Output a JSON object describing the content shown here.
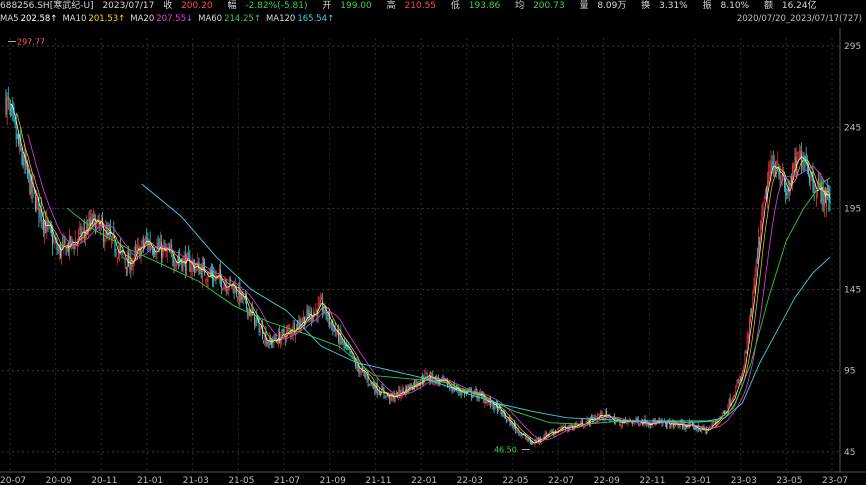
{
  "header": {
    "symbol": "688256.SH[寒武纪-U]",
    "date": "2023/07/17",
    "close_label": "收",
    "close": "200.20",
    "change_label": "幅",
    "change": "-2.82%(-5.81)",
    "open_label": "开",
    "open": "199.00",
    "high_label": "高",
    "high": "210.55",
    "low_label": "低",
    "low": "193.86",
    "avg_label": "均",
    "avg": "200.73",
    "volume_label": "量",
    "volume": "8.09万",
    "turnover_label": "换",
    "turnover": "3.31%",
    "amplitude_label": "振",
    "amplitude": "8.10%",
    "amount_label": "额",
    "amount": "16.24亿"
  },
  "ma_legend": [
    {
      "label": "MA5",
      "value": "202.58↑",
      "color": "#ffffff"
    },
    {
      "label": "MA10",
      "value": "201.53↑",
      "color": "#ffd400"
    },
    {
      "label": "MA20",
      "value": "207.55↓",
      "color": "#e040e0"
    },
    {
      "label": "MA60",
      "value": "214.25↑",
      "color": "#2ecc40"
    },
    {
      "label": "MA120",
      "value": "165.54↑",
      "color": "#3fd0e8"
    }
  ],
  "date_range": "2020/07/20_2023/07/17(727)",
  "chart_data": {
    "type": "candlestick",
    "y_ticks": [
      295,
      245,
      195,
      145,
      95,
      45
    ],
    "ylim": [
      40,
      300
    ],
    "x_ticks": [
      "20-07",
      "20-09",
      "20-11",
      "21-01",
      "21-03",
      "21-05",
      "21-07",
      "21-09",
      "21-11",
      "22-01",
      "22-03",
      "22-05",
      "22-07",
      "22-09",
      "22-11",
      "23-01",
      "23-03",
      "23-05",
      "23-07"
    ],
    "annotations": [
      {
        "text": "297.77",
        "value": 297.77,
        "type": "high"
      },
      {
        "text": "46.50",
        "value": 46.5,
        "type": "low"
      }
    ],
    "price_path": [
      [
        0,
        262
      ],
      [
        3,
        232
      ],
      [
        6,
        205
      ],
      [
        9,
        185
      ],
      [
        12,
        168
      ],
      [
        16,
        175
      ],
      [
        20,
        187
      ],
      [
        24,
        175
      ],
      [
        28,
        160
      ],
      [
        32,
        175
      ],
      [
        36,
        168
      ],
      [
        40,
        163
      ],
      [
        44,
        158
      ],
      [
        48,
        152
      ],
      [
        52,
        147
      ],
      [
        56,
        130
      ],
      [
        60,
        112
      ],
      [
        64,
        118
      ],
      [
        68,
        127
      ],
      [
        72,
        135
      ],
      [
        76,
        115
      ],
      [
        80,
        98
      ],
      [
        84,
        85
      ],
      [
        88,
        78
      ],
      [
        92,
        85
      ],
      [
        96,
        92
      ],
      [
        100,
        87
      ],
      [
        104,
        82
      ],
      [
        108,
        80
      ],
      [
        112,
        72
      ],
      [
        116,
        60
      ],
      [
        120,
        50
      ],
      [
        124,
        57
      ],
      [
        128,
        60
      ],
      [
        132,
        63
      ],
      [
        136,
        68
      ],
      [
        140,
        63
      ],
      [
        144,
        64
      ],
      [
        148,
        63
      ],
      [
        152,
        62
      ],
      [
        156,
        61
      ],
      [
        160,
        58
      ],
      [
        164,
        70
      ],
      [
        168,
        92
      ],
      [
        170,
        130
      ],
      [
        172,
        180
      ],
      [
        174,
        215
      ],
      [
        176,
        225
      ],
      [
        178,
        203
      ],
      [
        180,
        220
      ],
      [
        182,
        230
      ],
      [
        184,
        212
      ],
      [
        186,
        205
      ],
      [
        188,
        201
      ]
    ],
    "ma120_path": [
      [
        31,
        210
      ],
      [
        40,
        190
      ],
      [
        48,
        165
      ],
      [
        56,
        145
      ],
      [
        64,
        132
      ],
      [
        72,
        110
      ],
      [
        80,
        100
      ],
      [
        88,
        95
      ],
      [
        96,
        90
      ],
      [
        104,
        82
      ],
      [
        112,
        75
      ],
      [
        120,
        70
      ],
      [
        128,
        66
      ],
      [
        136,
        65
      ],
      [
        144,
        64
      ],
      [
        152,
        64
      ],
      [
        160,
        64
      ],
      [
        164,
        66
      ],
      [
        168,
        75
      ],
      [
        172,
        100
      ],
      [
        176,
        120
      ],
      [
        180,
        140
      ],
      [
        184,
        155
      ],
      [
        188,
        165
      ]
    ],
    "ma60_path": [
      [
        14,
        195
      ],
      [
        20,
        182
      ],
      [
        28,
        170
      ],
      [
        36,
        160
      ],
      [
        44,
        150
      ],
      [
        52,
        135
      ],
      [
        60,
        125
      ],
      [
        68,
        118
      ],
      [
        76,
        110
      ],
      [
        84,
        92
      ],
      [
        92,
        90
      ],
      [
        100,
        88
      ],
      [
        108,
        80
      ],
      [
        116,
        70
      ],
      [
        124,
        63
      ],
      [
        132,
        62
      ],
      [
        140,
        64
      ],
      [
        148,
        64
      ],
      [
        156,
        63
      ],
      [
        162,
        64
      ],
      [
        166,
        72
      ],
      [
        170,
        100
      ],
      [
        174,
        140
      ],
      [
        178,
        175
      ],
      [
        182,
        195
      ],
      [
        186,
        210
      ],
      [
        188,
        214
      ]
    ]
  }
}
